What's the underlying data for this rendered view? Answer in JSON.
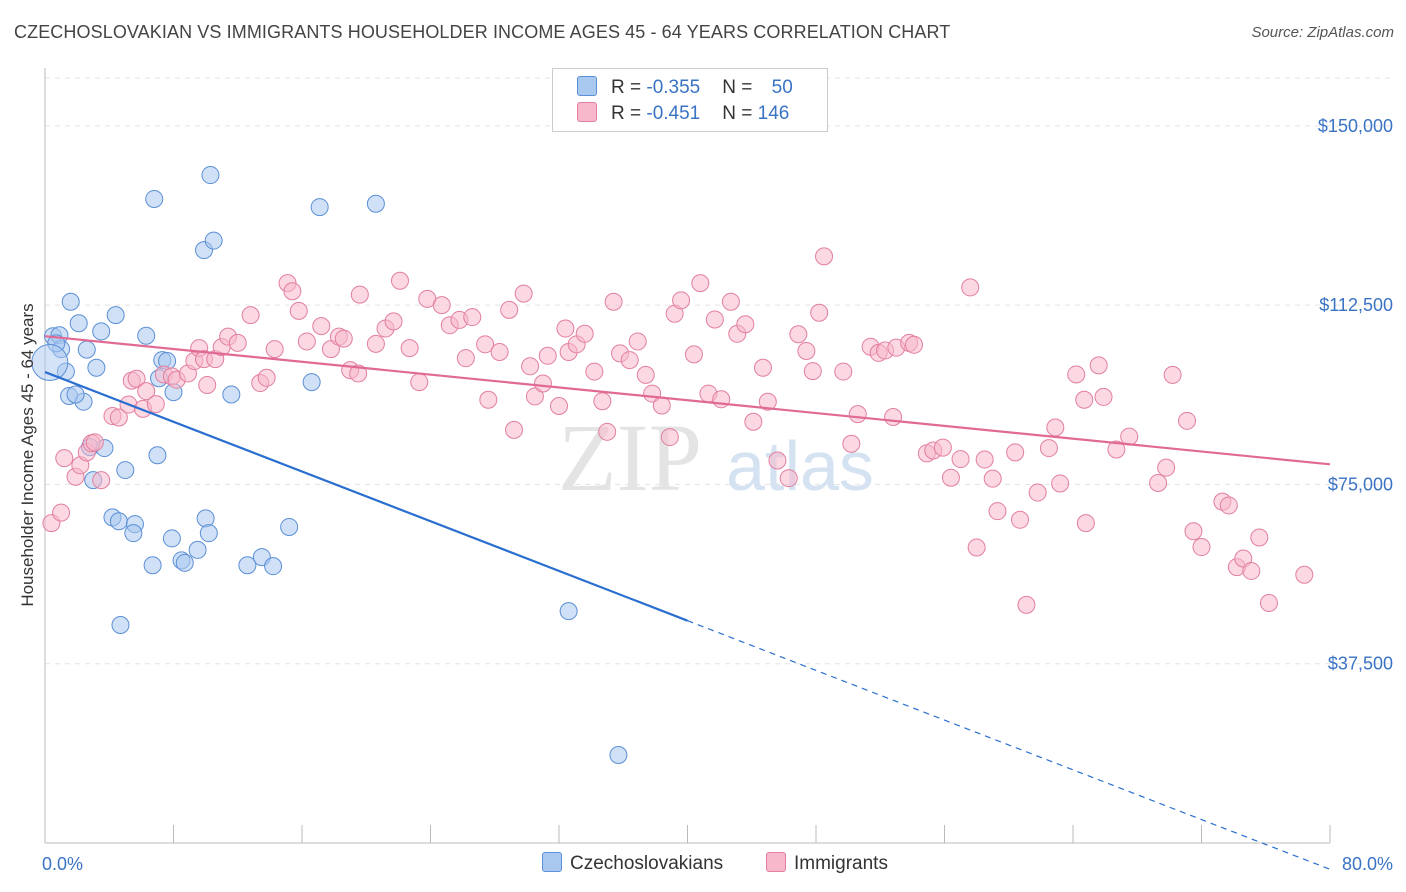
{
  "title": "CZECHOSLOVAKIAN VS IMMIGRANTS HOUSEHOLDER INCOME AGES 45 - 64 YEARS CORRELATION CHART",
  "source": "Source: ZipAtlas.com",
  "watermark": {
    "zip": "ZIP",
    "atlas": "atlas"
  },
  "legend": {
    "rows": [
      {
        "r_label": "R = ",
        "r_value": "-0.355",
        "n_label": "N = ",
        "n_value": "50",
        "color": "#a9c8f0",
        "stroke": "#5b8fd6"
      },
      {
        "r_label": "R = ",
        "r_value": "-0.451",
        "n_label": "N = ",
        "n_value": "146",
        "color": "#f7b8cb",
        "stroke": "#e27fa0"
      }
    ]
  },
  "bottom_legend": {
    "czech": "Czechoslovakians",
    "immigrants": "Immigrants"
  },
  "chart_data": {
    "type": "scatter",
    "title": "CZECHOSLOVAKIAN VS IMMIGRANTS HOUSEHOLDER INCOME AGES 45 - 64 YEARS CORRELATION CHART",
    "xlabel": "",
    "ylabel": "Householder Income Ages 45 - 64 years",
    "xlim": [
      0,
      80
    ],
    "ylim": [
      0,
      160000
    ],
    "x_tick_labels": [
      "0.0%",
      "80.0%"
    ],
    "y_ticks": [
      37500,
      75000,
      112500,
      150000
    ],
    "y_tick_labels": [
      "$37,500",
      "$75,000",
      "$112,500",
      "$150,000"
    ],
    "grid": true,
    "legend_position": "top-center",
    "series": [
      {
        "name": "Czechoslovakians",
        "color": "#a9c8f0",
        "stroke": "#5b8fd6",
        "line_color": "#2a6fcf",
        "trend": {
          "x0": 0,
          "y0": 98500,
          "x_solid_end": 40,
          "x1": 80,
          "y1": -5500
        },
        "points": [
          [
            0.5,
            106000
          ],
          [
            0.9,
            106200
          ],
          [
            1.0,
            103300
          ],
          [
            1.3,
            98600
          ],
          [
            1.6,
            113200
          ],
          [
            1.5,
            93500
          ],
          [
            2.1,
            108700
          ],
          [
            2.4,
            92300
          ],
          [
            2.6,
            103200
          ],
          [
            3.2,
            99400
          ],
          [
            3.5,
            107000
          ],
          [
            2.8,
            82800
          ],
          [
            3.7,
            82600
          ],
          [
            4.4,
            110400
          ],
          [
            4.2,
            68100
          ],
          [
            5.0,
            78000
          ],
          [
            4.6,
            67300
          ],
          [
            5.6,
            66700
          ],
          [
            5.5,
            64800
          ],
          [
            6.3,
            106100
          ],
          [
            6.7,
            58100
          ],
          [
            7.0,
            81100
          ],
          [
            7.1,
            97200
          ],
          [
            7.3,
            101000
          ],
          [
            7.6,
            100800
          ],
          [
            7.9,
            63700
          ],
          [
            8.0,
            94300
          ],
          [
            8.5,
            59100
          ],
          [
            8.7,
            58600
          ],
          [
            9.5,
            61300
          ],
          [
            10.0,
            67900
          ],
          [
            10.2,
            64800
          ],
          [
            9.9,
            124000
          ],
          [
            10.5,
            126000
          ],
          [
            10.3,
            139700
          ],
          [
            11.6,
            93800
          ],
          [
            12.6,
            58100
          ],
          [
            13.5,
            59800
          ],
          [
            14.2,
            57900
          ],
          [
            15.2,
            66100
          ],
          [
            16.6,
            96400
          ],
          [
            17.1,
            133000
          ],
          [
            20.6,
            133700
          ],
          [
            6.8,
            134700
          ],
          [
            4.7,
            45600
          ],
          [
            32.6,
            48500
          ],
          [
            35.7,
            18400
          ],
          [
            0.7,
            104500
          ],
          [
            1.9,
            93800
          ],
          [
            3.0,
            75900
          ]
        ]
      },
      {
        "name": "Immigrants",
        "color": "#f7b8cb",
        "stroke": "#e27fa0",
        "line_color": "#e06a94",
        "trend": {
          "x0": 0,
          "y0": 106000,
          "x1": 80,
          "y1": 79200
        },
        "points": [
          [
            0.4,
            66900
          ],
          [
            1.0,
            69100
          ],
          [
            1.2,
            80500
          ],
          [
            1.9,
            76600
          ],
          [
            2.2,
            79000
          ],
          [
            2.6,
            81700
          ],
          [
            2.9,
            83600
          ],
          [
            3.1,
            83800
          ],
          [
            3.5,
            75900
          ],
          [
            4.2,
            89300
          ],
          [
            4.6,
            89000
          ],
          [
            5.2,
            91700
          ],
          [
            5.4,
            96700
          ],
          [
            5.7,
            97100
          ],
          [
            6.1,
            90800
          ],
          [
            6.3,
            94500
          ],
          [
            6.9,
            91800
          ],
          [
            7.4,
            98000
          ],
          [
            7.9,
            97600
          ],
          [
            8.2,
            96900
          ],
          [
            8.9,
            98200
          ],
          [
            9.3,
            100800
          ],
          [
            9.6,
            103500
          ],
          [
            9.9,
            101200
          ],
          [
            10.1,
            95800
          ],
          [
            10.6,
            101200
          ],
          [
            11.0,
            103700
          ],
          [
            11.4,
            105900
          ],
          [
            12.0,
            104600
          ],
          [
            12.8,
            110400
          ],
          [
            13.4,
            96200
          ],
          [
            13.8,
            97300
          ],
          [
            14.3,
            103300
          ],
          [
            15.1,
            117100
          ],
          [
            15.4,
            115400
          ],
          [
            15.8,
            111300
          ],
          [
            16.3,
            104900
          ],
          [
            17.2,
            108100
          ],
          [
            17.8,
            103300
          ],
          [
            18.3,
            105900
          ],
          [
            18.6,
            105500
          ],
          [
            19.0,
            98900
          ],
          [
            19.5,
            98200
          ],
          [
            19.6,
            114700
          ],
          [
            20.6,
            104400
          ],
          [
            21.2,
            107600
          ],
          [
            21.7,
            109100
          ],
          [
            22.1,
            117600
          ],
          [
            22.7,
            103500
          ],
          [
            23.3,
            96400
          ],
          [
            23.8,
            113800
          ],
          [
            24.7,
            112500
          ],
          [
            25.2,
            108300
          ],
          [
            25.8,
            109400
          ],
          [
            26.2,
            101400
          ],
          [
            26.6,
            110000
          ],
          [
            27.4,
            104300
          ],
          [
            27.6,
            92700
          ],
          [
            28.3,
            102700
          ],
          [
            28.9,
            111500
          ],
          [
            29.2,
            86400
          ],
          [
            29.8,
            114900
          ],
          [
            30.2,
            99700
          ],
          [
            30.5,
            93400
          ],
          [
            31.0,
            96100
          ],
          [
            31.3,
            101900
          ],
          [
            32.0,
            91400
          ],
          [
            32.4,
            107600
          ],
          [
            32.6,
            102700
          ],
          [
            33.1,
            104300
          ],
          [
            33.6,
            106500
          ],
          [
            34.2,
            98600
          ],
          [
            34.7,
            92400
          ],
          [
            35.0,
            86000
          ],
          [
            35.4,
            113200
          ],
          [
            35.8,
            102400
          ],
          [
            36.4,
            101000
          ],
          [
            36.9,
            104900
          ],
          [
            37.4,
            97900
          ],
          [
            37.8,
            94000
          ],
          [
            38.4,
            91500
          ],
          [
            38.9,
            84900
          ],
          [
            39.2,
            110700
          ],
          [
            39.6,
            113500
          ],
          [
            40.4,
            102200
          ],
          [
            40.8,
            117100
          ],
          [
            41.3,
            94000
          ],
          [
            41.7,
            109500
          ],
          [
            42.1,
            92800
          ],
          [
            42.7,
            113200
          ],
          [
            43.1,
            106500
          ],
          [
            43.6,
            108500
          ],
          [
            44.1,
            88100
          ],
          [
            44.7,
            99400
          ],
          [
            45.0,
            92300
          ],
          [
            45.6,
            80000
          ],
          [
            46.3,
            76300
          ],
          [
            46.9,
            106400
          ],
          [
            47.4,
            102900
          ],
          [
            47.8,
            98700
          ],
          [
            48.2,
            110900
          ],
          [
            48.5,
            122700
          ],
          [
            49.7,
            98600
          ],
          [
            50.2,
            83500
          ],
          [
            50.6,
            89700
          ],
          [
            51.4,
            103800
          ],
          [
            51.9,
            102500
          ],
          [
            52.3,
            103000
          ],
          [
            52.8,
            89100
          ],
          [
            53.0,
            103600
          ],
          [
            53.8,
            104600
          ],
          [
            54.1,
            104200
          ],
          [
            54.9,
            81500
          ],
          [
            55.3,
            82100
          ],
          [
            55.9,
            82700
          ],
          [
            56.4,
            76400
          ],
          [
            57.0,
            80300
          ],
          [
            57.6,
            116200
          ],
          [
            58.0,
            61800
          ],
          [
            58.5,
            80200
          ],
          [
            59.0,
            76200
          ],
          [
            59.3,
            69400
          ],
          [
            60.4,
            81700
          ],
          [
            60.7,
            67600
          ],
          [
            61.1,
            49800
          ],
          [
            61.8,
            73300
          ],
          [
            62.5,
            82600
          ],
          [
            62.9,
            86900
          ],
          [
            63.2,
            75200
          ],
          [
            64.2,
            98000
          ],
          [
            64.7,
            92700
          ],
          [
            64.8,
            66900
          ],
          [
            65.6,
            99900
          ],
          [
            65.9,
            93300
          ],
          [
            66.7,
            82300
          ],
          [
            67.5,
            85000
          ],
          [
            69.3,
            75300
          ],
          [
            69.8,
            78500
          ],
          [
            70.2,
            97900
          ],
          [
            71.1,
            88300
          ],
          [
            71.5,
            65200
          ],
          [
            72.0,
            61900
          ],
          [
            73.3,
            71400
          ],
          [
            73.7,
            70600
          ],
          [
            74.2,
            57700
          ],
          [
            74.6,
            59500
          ],
          [
            75.1,
            56900
          ],
          [
            75.6,
            63900
          ],
          [
            76.2,
            50200
          ],
          [
            78.4,
            56100
          ]
        ]
      }
    ]
  }
}
